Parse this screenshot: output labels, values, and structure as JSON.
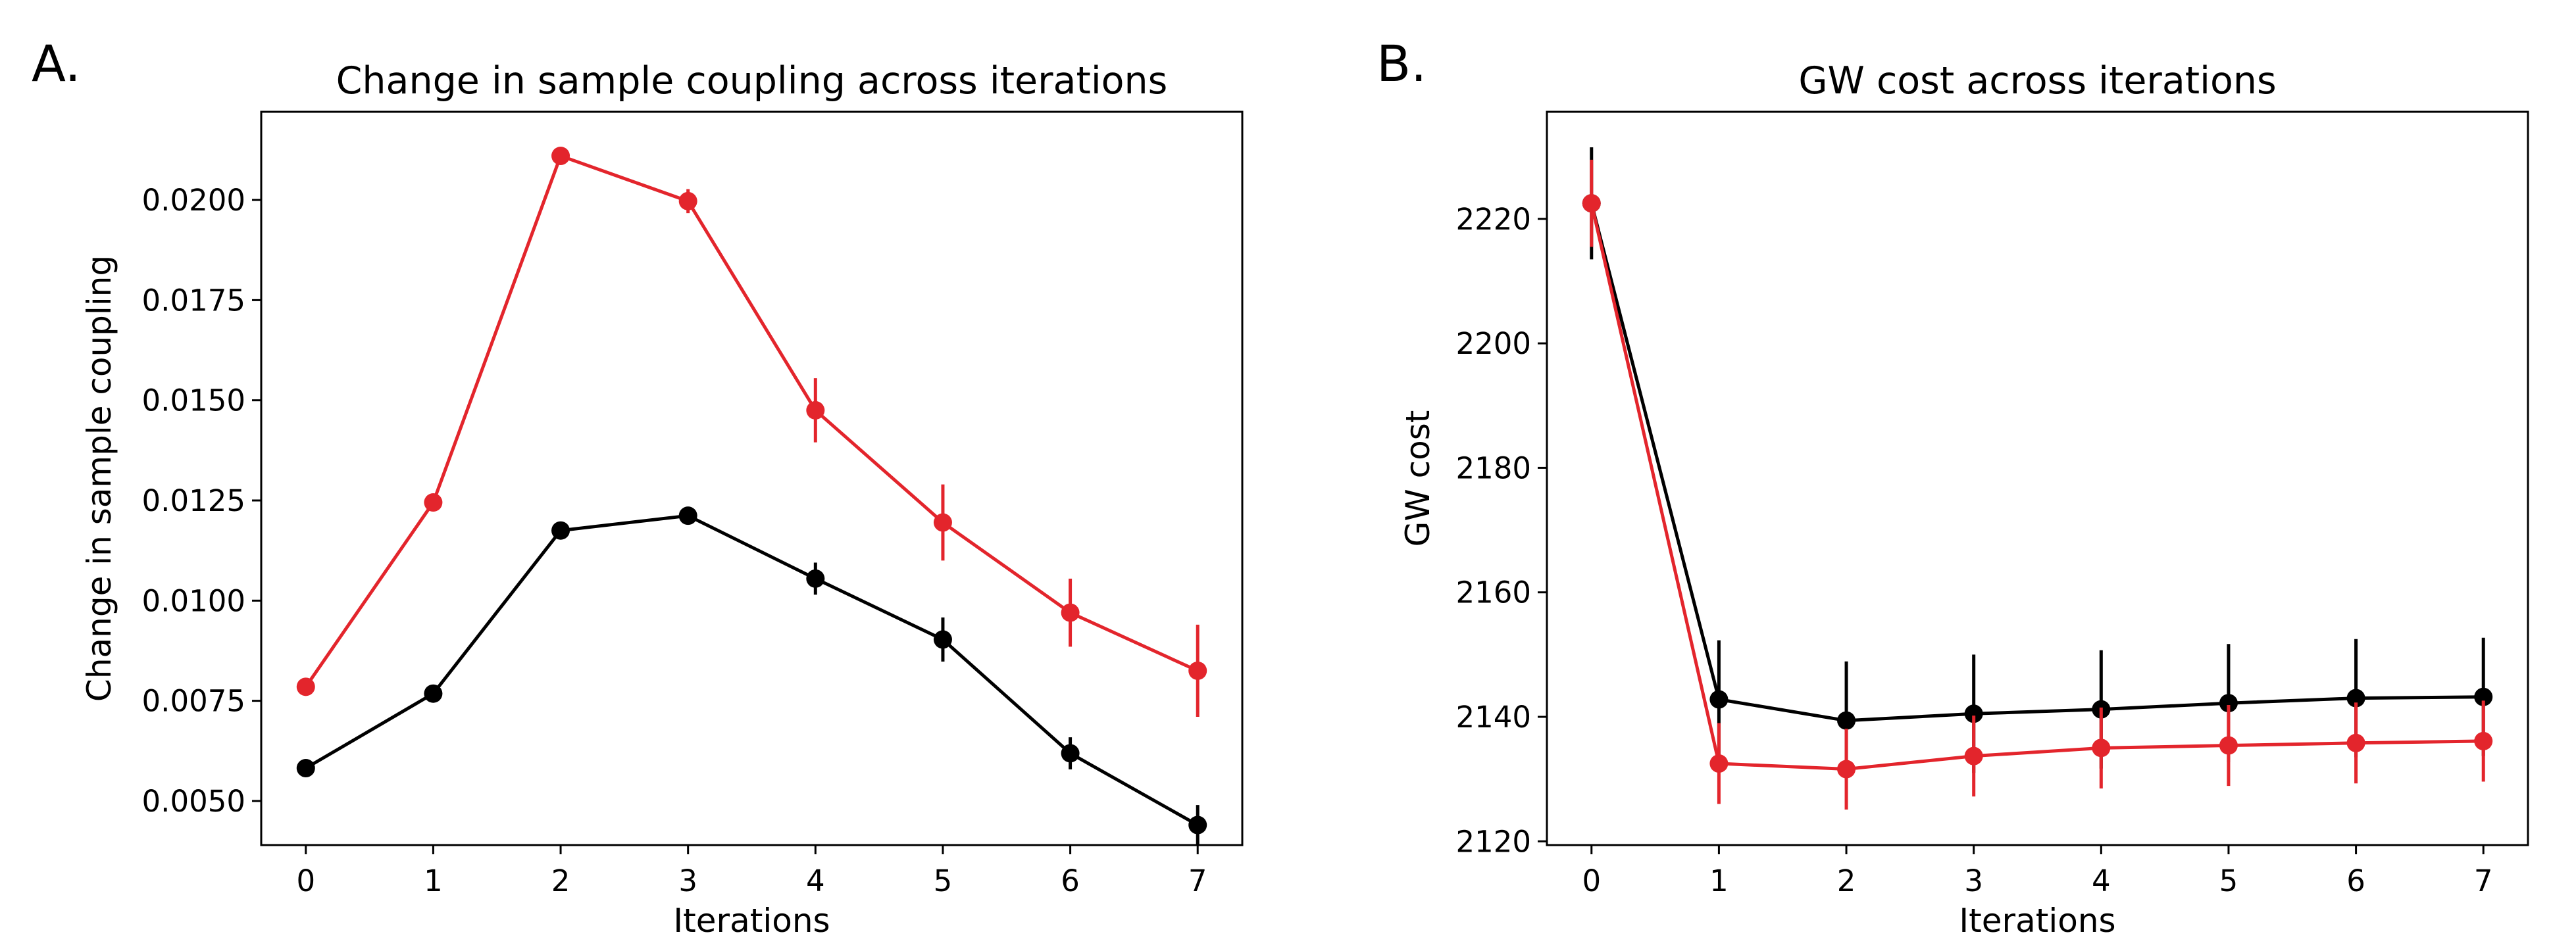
{
  "panels": [
    {
      "letter": "A.",
      "chart_data": {
        "type": "line",
        "title": "Change in sample coupling across iterations",
        "xlabel": "Iterations",
        "ylabel": "Change in sample coupling",
        "x": [
          0,
          1,
          2,
          3,
          4,
          5,
          6,
          7
        ],
        "xlim": [
          -0.35,
          7.35
        ],
        "ylim": [
          0.0039,
          0.0222
        ],
        "yticks": [
          0.005,
          0.0075,
          0.01,
          0.0125,
          0.015,
          0.0175,
          0.02
        ],
        "ytick_labels": [
          "0.0050",
          "0.0075",
          "0.0100",
          "0.0125",
          "0.0150",
          "0.0175",
          "0.0200"
        ],
        "grid": false,
        "series": [
          {
            "color": "#e3252c",
            "values": [
              0.00785,
              0.01245,
              0.0211,
              0.01997,
              0.01475,
              0.01195,
              0.0097,
              0.00825
            ],
            "errors": [
              0.00012,
              0.00012,
              0.00012,
              0.0003,
              0.0008,
              0.00095,
              0.00085,
              0.00115
            ]
          },
          {
            "color": "#000000",
            "values": [
              0.00582,
              0.00768,
              0.01175,
              0.01212,
              0.01055,
              0.00903,
              0.00619,
              0.0044
            ],
            "errors": [
              0.00012,
              0.00012,
              0.00012,
              0.00015,
              0.0004,
              0.00055,
              0.0004,
              0.0005
            ]
          }
        ]
      }
    },
    {
      "letter": "B.",
      "chart_data": {
        "type": "line",
        "title": "GW cost across iterations",
        "xlabel": "Iterations",
        "ylabel": "GW cost",
        "x": [
          0,
          1,
          2,
          3,
          4,
          5,
          6,
          7
        ],
        "xlim": [
          -0.35,
          7.35
        ],
        "ylim": [
          2119.4,
          2237.2
        ],
        "yticks": [
          2120,
          2140,
          2160,
          2180,
          2200,
          2220
        ],
        "ytick_labels": [
          "2120",
          "2140",
          "2160",
          "2180",
          "2200",
          "2220"
        ],
        "grid": false,
        "series": [
          {
            "color": "#000000",
            "values": [
              2222.5,
              2142.8,
              2139.4,
              2140.5,
              2141.2,
              2142.2,
              2143.0,
              2143.2
            ],
            "errors": [
              9.0,
              9.5,
              9.5,
              9.5,
              9.5,
              9.5,
              9.5,
              9.5
            ]
          },
          {
            "color": "#e3252c",
            "values": [
              2222.5,
              2132.5,
              2131.6,
              2133.7,
              2135.0,
              2135.4,
              2135.8,
              2136.1
            ],
            "errors": [
              7.0,
              6.5,
              6.5,
              6.5,
              6.5,
              6.5,
              6.5,
              6.5
            ]
          }
        ]
      }
    }
  ]
}
